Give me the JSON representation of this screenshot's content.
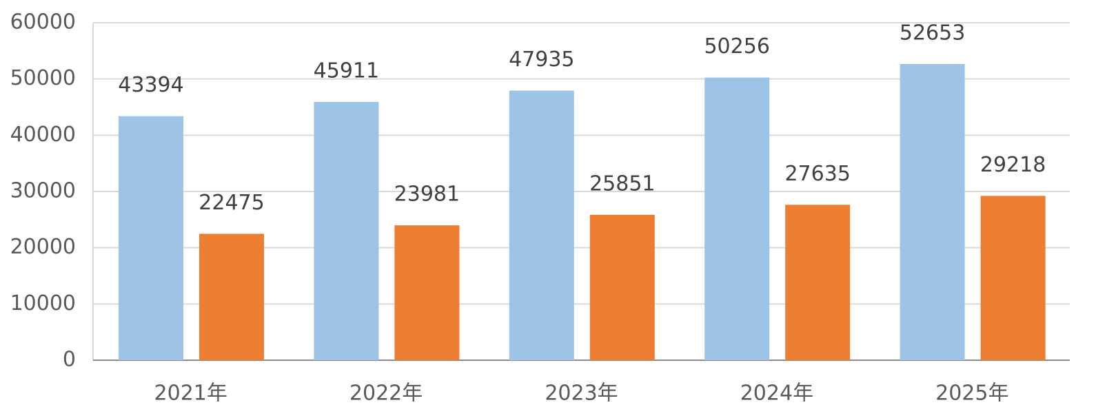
{
  "chart_data": {
    "type": "bar",
    "categories": [
      "2021年",
      "2022年",
      "2023年",
      "2024年",
      "2025年"
    ],
    "series": [
      {
        "color": "#9dc3e6",
        "values": [
          43394,
          45911,
          47935,
          50256,
          52653
        ]
      },
      {
        "color": "#ed7d31",
        "values": [
          22475,
          23981,
          25851,
          27635,
          29218
        ]
      }
    ],
    "ylim": [
      0,
      60000
    ],
    "yticks": [
      0,
      10000,
      20000,
      30000,
      40000,
      50000,
      60000
    ],
    "grid": true,
    "data_labels": true
  }
}
